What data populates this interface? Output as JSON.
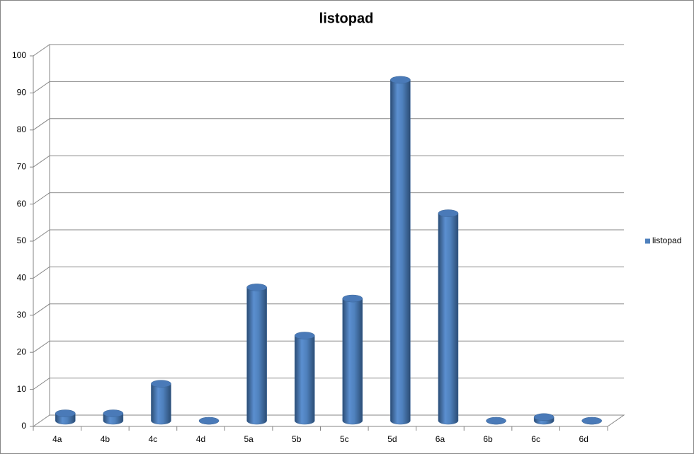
{
  "chart_data": {
    "type": "bar",
    "title": "listopad",
    "categories": [
      "4a",
      "4b",
      "4c",
      "4d",
      "5a",
      "5b",
      "5c",
      "5d",
      "6a",
      "6b",
      "6c",
      "6d"
    ],
    "series": [
      {
        "name": "listopad",
        "color": "#4f81bd",
        "values": [
          2,
          2,
          10,
          0,
          36,
          23,
          33,
          92,
          56,
          0,
          1,
          0
        ]
      }
    ],
    "ylim": [
      0,
      100
    ],
    "yticks": [
      0,
      10,
      20,
      30,
      40,
      50,
      60,
      70,
      80,
      90,
      100
    ],
    "grid": true,
    "legend": "right"
  }
}
